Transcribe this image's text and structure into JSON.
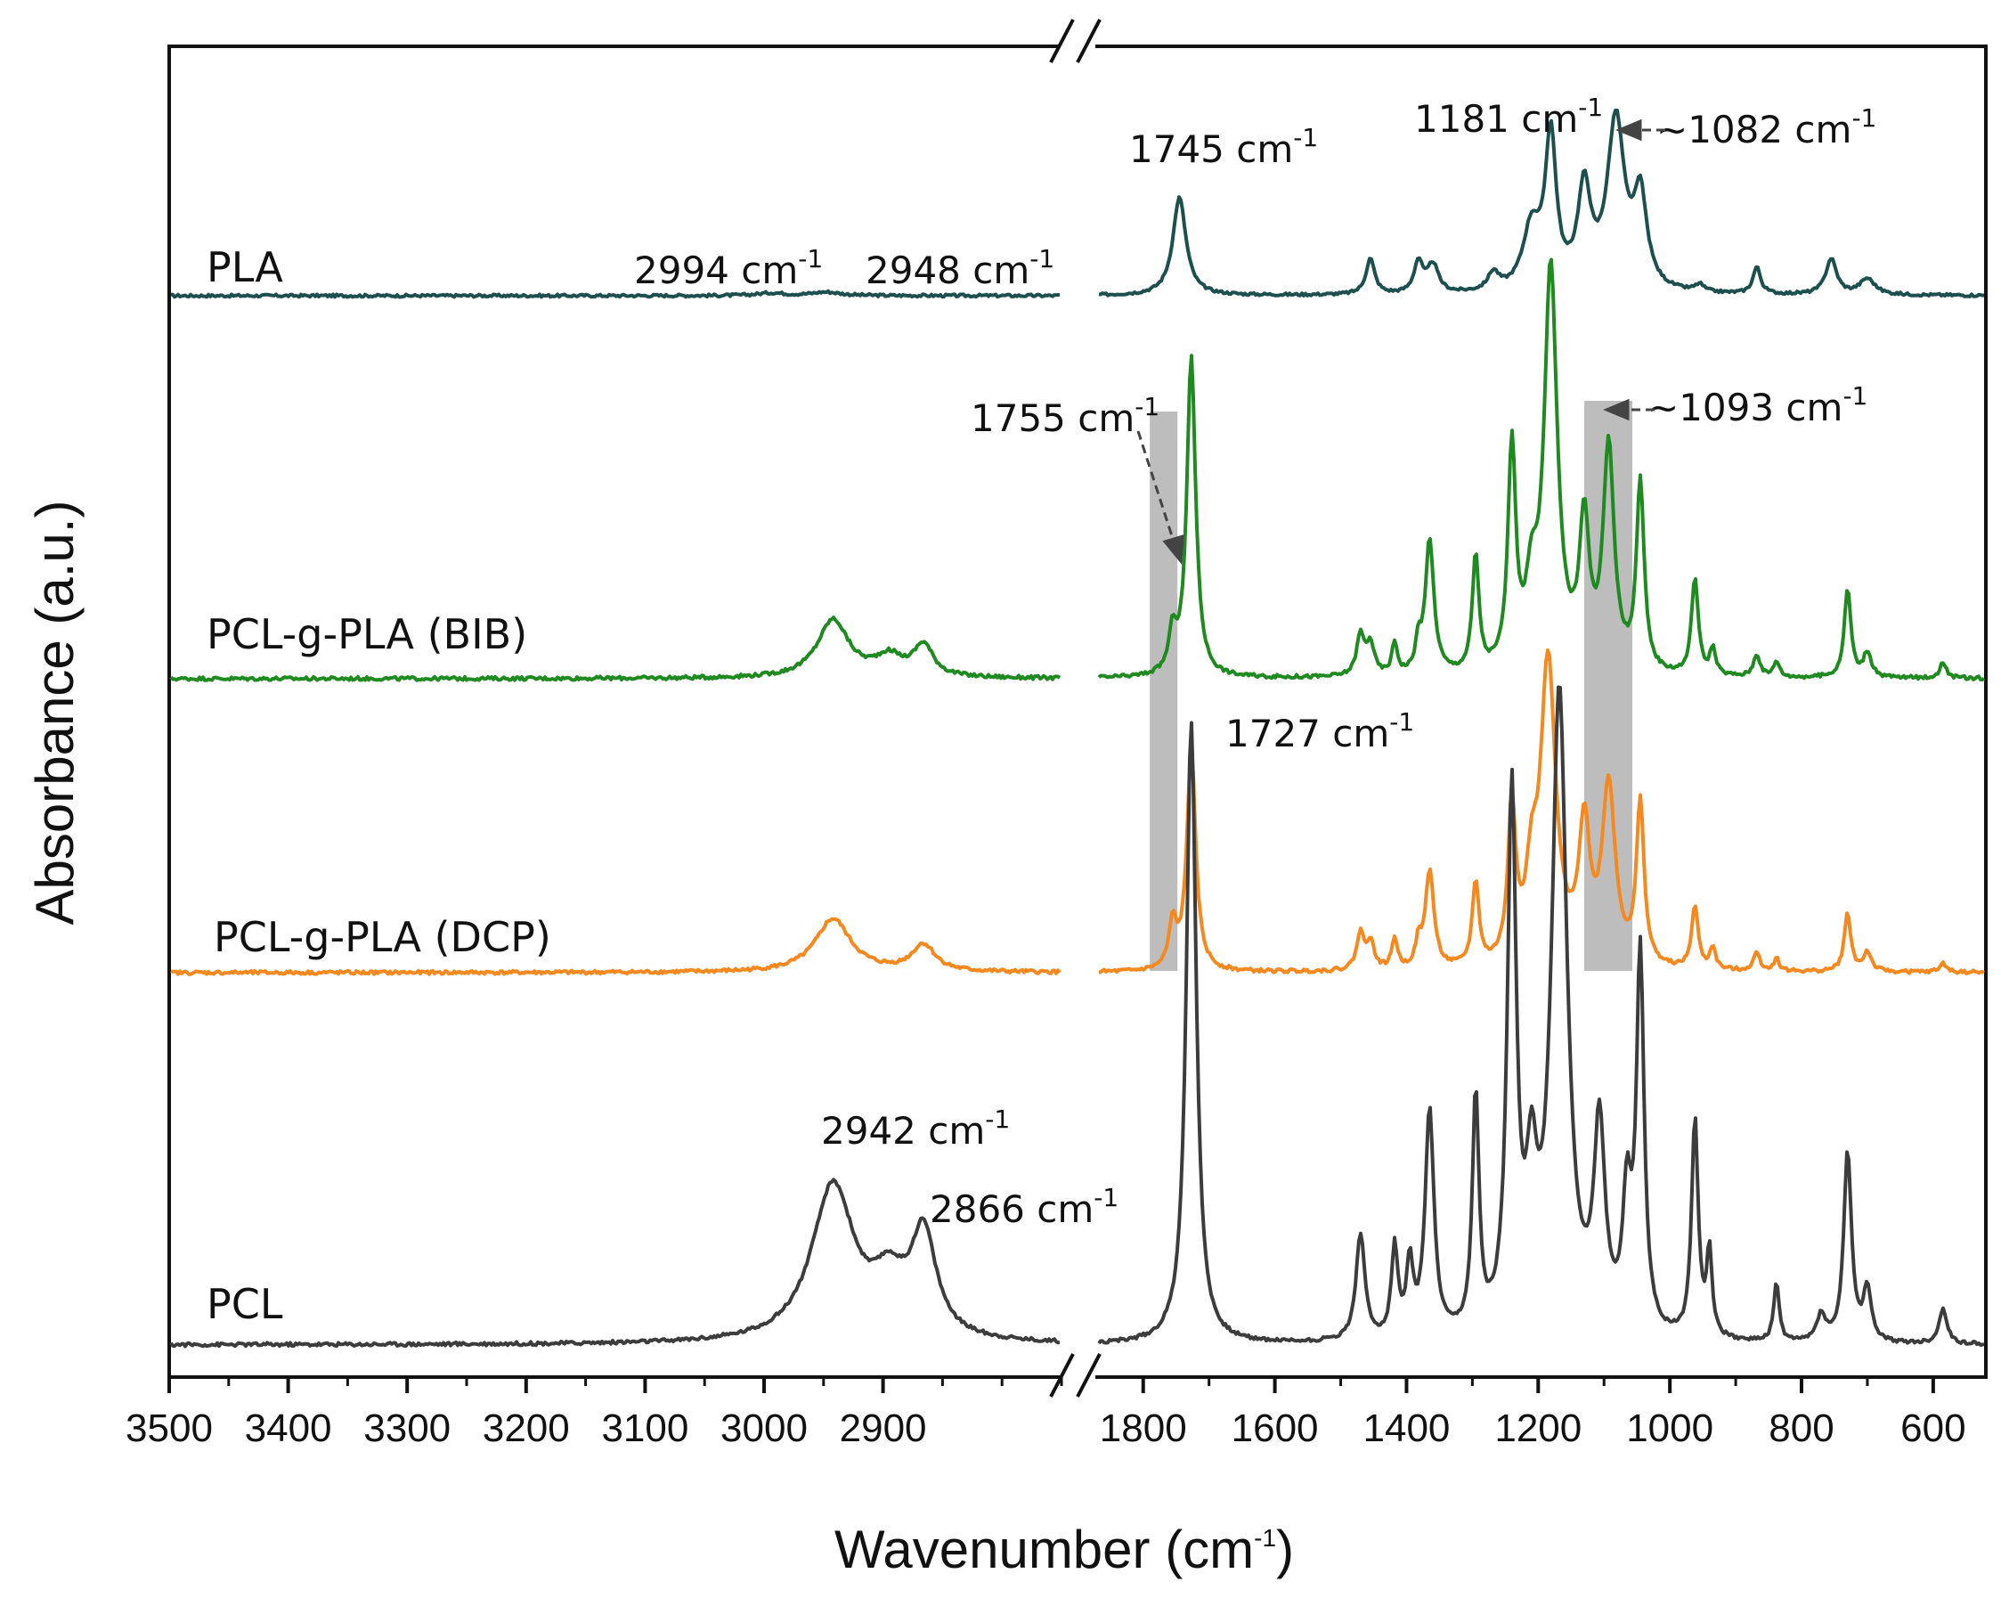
{
  "chart_data": {
    "type": "line",
    "title": "",
    "xlabel": "Wavenumber (cm",
    "xlabel_sup": "-1",
    "xlabel_end": ")",
    "ylabel": "Absorbance (a.u.)",
    "x_axis_break": true,
    "segments": [
      {
        "xlim": [
          3500,
          2750
        ],
        "ticks": [
          3500,
          3400,
          3300,
          3200,
          3100,
          3000,
          2900
        ]
      },
      {
        "xlim": [
          1870,
          520
        ],
        "ticks": [
          1800,
          1600,
          1400,
          1200,
          1000,
          800,
          600
        ]
      }
    ],
    "grid": false,
    "series": [
      {
        "name": "PLA",
        "color": "#1e4f4f",
        "offset": 0.0,
        "baseline": 0.0,
        "noise": 1.5,
        "peaks": [
          [
            2994,
            3,
            14
          ],
          [
            2948,
            4,
            14
          ],
          [
            1745,
            110,
            12
          ],
          [
            1455,
            40,
            8
          ],
          [
            1382,
            35,
            8
          ],
          [
            1360,
            32,
            10
          ],
          [
            1268,
            20,
            10
          ],
          [
            1210,
            70,
            16
          ],
          [
            1181,
            170,
            10
          ],
          [
            1130,
            110,
            12
          ],
          [
            1082,
            190,
            16
          ],
          [
            1045,
            100,
            12
          ],
          [
            955,
            8,
            8
          ],
          [
            868,
            30,
            7
          ],
          [
            755,
            40,
            10
          ],
          [
            700,
            18,
            14
          ]
        ]
      },
      {
        "name": "PCL-g-PLA (BIB)",
        "color": "#1f8a1f",
        "offset": 0.0,
        "baseline": 0.0,
        "noise": 2.0,
        "peaks": [
          [
            2942,
            65,
            16
          ],
          [
            2895,
            22,
            14
          ],
          [
            2866,
            35,
            10
          ],
          [
            1755,
            45,
            7
          ],
          [
            1727,
            360,
            8
          ],
          [
            1470,
            45,
            7
          ],
          [
            1455,
            35,
            7
          ],
          [
            1418,
            35,
            5
          ],
          [
            1382,
            30,
            5
          ],
          [
            1365,
            150,
            8
          ],
          [
            1295,
            130,
            6
          ],
          [
            1240,
            250,
            7
          ],
          [
            1210,
            80,
            10
          ],
          [
            1181,
            450,
            12
          ],
          [
            1130,
            160,
            9
          ],
          [
            1093,
            250,
            10
          ],
          [
            1045,
            210,
            7
          ],
          [
            962,
            110,
            6
          ],
          [
            935,
            30,
            5
          ],
          [
            868,
            25,
            6
          ],
          [
            838,
            18,
            5
          ],
          [
            730,
            100,
            6
          ],
          [
            700,
            28,
            7
          ],
          [
            585,
            18,
            6
          ]
        ]
      },
      {
        "name": "PCL-g-PLA (DCP)",
        "color": "#f5891f",
        "offset": 0.0,
        "baseline": 0.0,
        "noise": 2.0,
        "peaks": [
          [
            2942,
            60,
            18
          ],
          [
            2866,
            30,
            12
          ],
          [
            1755,
            50,
            7
          ],
          [
            1727,
            250,
            8
          ],
          [
            1470,
            40,
            7
          ],
          [
            1455,
            30,
            7
          ],
          [
            1418,
            35,
            5
          ],
          [
            1382,
            25,
            5
          ],
          [
            1365,
            110,
            8
          ],
          [
            1295,
            95,
            6
          ],
          [
            1240,
            175,
            7
          ],
          [
            1210,
            80,
            10
          ],
          [
            1185,
            340,
            14
          ],
          [
            1130,
            150,
            10
          ],
          [
            1093,
            200,
            12
          ],
          [
            1045,
            180,
            7
          ],
          [
            962,
            70,
            6
          ],
          [
            935,
            25,
            5
          ],
          [
            868,
            20,
            6
          ],
          [
            838,
            14,
            5
          ],
          [
            730,
            65,
            6
          ],
          [
            700,
            22,
            7
          ],
          [
            585,
            10,
            6
          ]
        ]
      },
      {
        "name": "PCL",
        "color": "#3c3c3c",
        "offset": 0.0,
        "baseline": 0.0,
        "noise": 2.0,
        "peaks": [
          [
            2942,
            175,
            22
          ],
          [
            2895,
            55,
            16
          ],
          [
            2866,
            115,
            13
          ],
          [
            1727,
            700,
            9
          ],
          [
            1470,
            120,
            8
          ],
          [
            1418,
            100,
            6
          ],
          [
            1395,
            80,
            6
          ],
          [
            1365,
            255,
            8
          ],
          [
            1295,
            265,
            6
          ],
          [
            1240,
            600,
            8
          ],
          [
            1210,
            150,
            10
          ],
          [
            1168,
            720,
            14
          ],
          [
            1107,
            225,
            10
          ],
          [
            1065,
            140,
            8
          ],
          [
            1045,
            420,
            7
          ],
          [
            962,
            245,
            6
          ],
          [
            940,
            95,
            5
          ],
          [
            838,
            65,
            5
          ],
          [
            770,
            30,
            8
          ],
          [
            730,
            215,
            7
          ],
          [
            700,
            60,
            7
          ],
          [
            585,
            40,
            7
          ]
        ]
      }
    ],
    "labels": {
      "pla": "PLA",
      "bib": "PCL-g-PLA (BIB)",
      "dcp": "PCL-g-PLA (DCP)",
      "pcl": "PCL"
    },
    "annotations": [
      {
        "text": "2994 cm",
        "sup": "-1"
      },
      {
        "text": "2948 cm",
        "sup": "-1"
      },
      {
        "text": "1745 cm",
        "sup": "-1"
      },
      {
        "text": "1181 cm",
        "sup": "-1"
      },
      {
        "text": "~1082 cm",
        "sup": "-1"
      },
      {
        "text": "1755 cm",
        "sup": "-1"
      },
      {
        "text": "~1093 cm",
        "sup": "-1"
      },
      {
        "text": "1727 cm",
        "sup": "-1"
      },
      {
        "text": "2942 cm",
        "sup": "-1"
      },
      {
        "text": "2866 cm",
        "sup": "-1"
      }
    ],
    "highlight_bands": [
      {
        "x_range": [
          1790,
          1748
        ]
      },
      {
        "x_range": [
          1130,
          1057
        ]
      }
    ]
  }
}
